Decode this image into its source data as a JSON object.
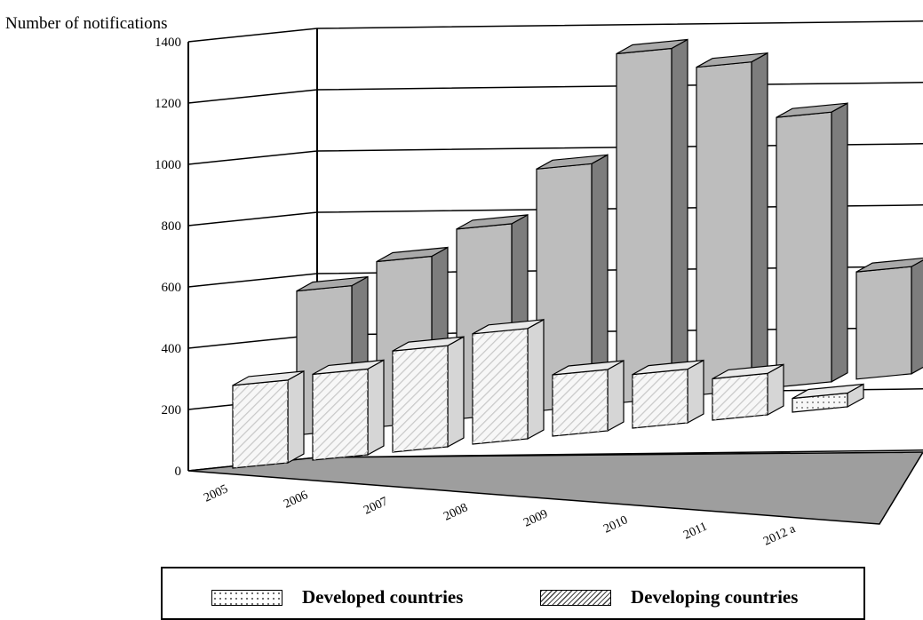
{
  "y_axis_title": "Number of notifications",
  "legend": {
    "developed": "Developed countries",
    "developing": "Developing countries"
  },
  "chart_data": {
    "type": "bar",
    "categories": [
      "2005",
      "2006",
      "2007",
      "2008",
      "2009",
      "2010",
      "2011",
      "2012 a"
    ],
    "series": [
      {
        "name": "Developed countries",
        "values": [
          270,
          280,
          330,
          360,
          200,
          175,
          135,
          45
        ]
      },
      {
        "name": "Developing countries",
        "values": [
          470,
          540,
          620,
          790,
          1140,
          1070,
          880,
          350
        ]
      }
    ],
    "ylim": [
      0,
      1400
    ],
    "yticks": [
      0,
      200,
      400,
      600,
      800,
      1000,
      1200,
      1400
    ],
    "ylabel": "Number of notifications",
    "xlabel": "",
    "grid": true,
    "legend_position": "bottom"
  },
  "colors": {
    "developing_front": "#bdbdbd",
    "developing_side": "#7d7d7d",
    "developing_top": "#a9a9a9",
    "developed_front": "#f7f7f7",
    "developed_side": "#d6d6d6",
    "developed_top": "#e9e9e9",
    "floor": "#9e9e9e"
  }
}
